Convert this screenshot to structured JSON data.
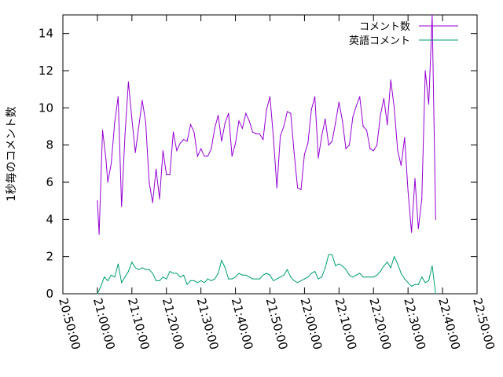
{
  "chart_data": {
    "type": "line",
    "title": "",
    "xlabel": "",
    "ylabel": "1秒毎のコメント数",
    "ylim": [
      0,
      15
    ],
    "yticks": [
      "0",
      "2",
      "4",
      "6",
      "8",
      "10",
      "12",
      "14"
    ],
    "xlim": [
      "20:50:00",
      "22:50:00"
    ],
    "xticks": [
      "20:50:00",
      "21:00:00",
      "21:10:00",
      "21:20:00",
      "21:30:00",
      "21:40:00",
      "21:50:00",
      "22:00:00",
      "22:10:00",
      "22:20:00",
      "22:30:00",
      "22:40:00",
      "22:50:00"
    ],
    "grid": false,
    "legend_position": "top-right",
    "series": [
      {
        "name": "コメント数",
        "color": "#9400d3",
        "points": [
          [
            "21:00:00",
            5.0
          ],
          [
            "21:00:30",
            3.2
          ],
          [
            "21:01:30",
            8.8
          ],
          [
            "21:02:30",
            7.2
          ],
          [
            "21:03:00",
            6.0
          ],
          [
            "21:04:00",
            7.0
          ],
          [
            "21:05:00",
            9.2
          ],
          [
            "21:06:00",
            10.6
          ],
          [
            "21:07:00",
            4.7
          ],
          [
            "21:08:00",
            8.6
          ],
          [
            "21:09:00",
            11.4
          ],
          [
            "21:10:00",
            9.4
          ],
          [
            "21:11:00",
            7.6
          ],
          [
            "21:12:00",
            9.0
          ],
          [
            "21:13:00",
            10.4
          ],
          [
            "21:14:00",
            9.2
          ],
          [
            "21:15:00",
            6.0
          ],
          [
            "21:16:00",
            4.9
          ],
          [
            "21:17:00",
            6.7
          ],
          [
            "21:18:00",
            5.1
          ],
          [
            "21:19:00",
            7.7
          ],
          [
            "21:20:00",
            6.4
          ],
          [
            "21:21:00",
            6.4
          ],
          [
            "21:22:00",
            8.7
          ],
          [
            "21:23:00",
            7.7
          ],
          [
            "21:24:00",
            8.1
          ],
          [
            "21:25:00",
            8.3
          ],
          [
            "21:26:00",
            8.2
          ],
          [
            "21:27:00",
            9.1
          ],
          [
            "21:28:00",
            8.7
          ],
          [
            "21:29:00",
            7.4
          ],
          [
            "21:30:00",
            7.8
          ],
          [
            "21:31:00",
            7.4
          ],
          [
            "21:32:00",
            7.4
          ],
          [
            "21:33:00",
            7.8
          ],
          [
            "21:34:00",
            8.9
          ],
          [
            "21:35:00",
            9.6
          ],
          [
            "21:36:00",
            8.2
          ],
          [
            "21:37:00",
            9.2
          ],
          [
            "21:38:00",
            9.7
          ],
          [
            "21:39:00",
            7.4
          ],
          [
            "21:40:00",
            8.1
          ],
          [
            "21:41:00",
            9.3
          ],
          [
            "21:42:00",
            8.9
          ],
          [
            "21:43:00",
            9.7
          ],
          [
            "21:44:00",
            9.3
          ],
          [
            "21:45:00",
            8.7
          ],
          [
            "21:46:00",
            8.6
          ],
          [
            "21:47:00",
            8.6
          ],
          [
            "21:48:00",
            8.3
          ],
          [
            "21:49:00",
            9.9
          ],
          [
            "21:50:00",
            10.6
          ],
          [
            "21:51:00",
            8.4
          ],
          [
            "21:52:00",
            5.7
          ],
          [
            "21:53:00",
            8.5
          ],
          [
            "21:54:00",
            9.0
          ],
          [
            "21:55:00",
            9.8
          ],
          [
            "21:56:00",
            9.7
          ],
          [
            "21:57:00",
            7.6
          ],
          [
            "21:58:00",
            5.7
          ],
          [
            "21:59:00",
            5.6
          ],
          [
            "22:00:00",
            7.5
          ],
          [
            "22:01:00",
            8.1
          ],
          [
            "22:02:00",
            9.9
          ],
          [
            "22:03:00",
            10.6
          ],
          [
            "22:04:00",
            7.3
          ],
          [
            "22:05:00",
            8.5
          ],
          [
            "22:06:00",
            9.4
          ],
          [
            "22:07:00",
            8.0
          ],
          [
            "22:08:00",
            8.2
          ],
          [
            "22:09:00",
            9.2
          ],
          [
            "22:10:00",
            10.3
          ],
          [
            "22:11:00",
            9.3
          ],
          [
            "22:12:00",
            7.8
          ],
          [
            "22:13:00",
            8.0
          ],
          [
            "22:14:00",
            9.5
          ],
          [
            "22:15:00",
            10.1
          ],
          [
            "22:16:00",
            10.6
          ],
          [
            "22:17:00",
            9.0
          ],
          [
            "22:18:00",
            8.8
          ],
          [
            "22:19:00",
            7.8
          ],
          [
            "22:20:00",
            7.7
          ],
          [
            "22:21:00",
            8.0
          ],
          [
            "22:22:00",
            9.6
          ],
          [
            "22:23:00",
            10.5
          ],
          [
            "22:24:00",
            9.1
          ],
          [
            "22:25:00",
            11.5
          ],
          [
            "22:26:00",
            10.0
          ],
          [
            "22:27:00",
            7.7
          ],
          [
            "22:28:00",
            6.9
          ],
          [
            "22:29:00",
            8.4
          ],
          [
            "22:30:00",
            5.5
          ],
          [
            "22:31:00",
            3.3
          ],
          [
            "22:32:00",
            6.2
          ],
          [
            "22:33:00",
            3.5
          ],
          [
            "22:34:00",
            5.1
          ],
          [
            "22:35:00",
            12.0
          ],
          [
            "22:36:00",
            10.2
          ],
          [
            "22:37:00",
            15.0
          ],
          [
            "22:38:00",
            4.0
          ]
        ]
      },
      {
        "name": "英語コメント",
        "color": "#009e73",
        "points": [
          [
            "21:00:00",
            0.0
          ],
          [
            "21:01:00",
            0.4
          ],
          [
            "21:02:00",
            0.9
          ],
          [
            "21:03:00",
            0.7
          ],
          [
            "21:04:00",
            1.0
          ],
          [
            "21:05:00",
            0.9
          ],
          [
            "21:06:00",
            1.6
          ],
          [
            "21:07:00",
            0.6
          ],
          [
            "21:08:00",
            0.9
          ],
          [
            "21:09:00",
            1.2
          ],
          [
            "21:10:00",
            1.7
          ],
          [
            "21:11:00",
            1.4
          ],
          [
            "21:12:00",
            1.3
          ],
          [
            "21:13:00",
            1.4
          ],
          [
            "21:14:00",
            1.3
          ],
          [
            "21:15:00",
            1.3
          ],
          [
            "21:16:00",
            1.1
          ],
          [
            "21:17:00",
            0.7
          ],
          [
            "21:18:00",
            0.7
          ],
          [
            "21:19:00",
            0.9
          ],
          [
            "21:20:00",
            0.8
          ],
          [
            "21:21:00",
            1.2
          ],
          [
            "21:22:00",
            1.1
          ],
          [
            "21:23:00",
            1.1
          ],
          [
            "21:24:00",
            0.9
          ],
          [
            "21:25:00",
            1.0
          ],
          [
            "21:26:00",
            0.5
          ],
          [
            "21:27:00",
            0.7
          ],
          [
            "21:28:00",
            0.7
          ],
          [
            "21:29:00",
            0.6
          ],
          [
            "21:30:00",
            0.7
          ],
          [
            "21:31:00",
            0.6
          ],
          [
            "21:32:00",
            0.8
          ],
          [
            "21:33:00",
            0.7
          ],
          [
            "21:34:00",
            0.8
          ],
          [
            "21:35:00",
            1.1
          ],
          [
            "21:36:00",
            1.8
          ],
          [
            "21:37:00",
            1.4
          ],
          [
            "21:38:00",
            0.8
          ],
          [
            "21:39:00",
            0.8
          ],
          [
            "21:40:00",
            0.9
          ],
          [
            "21:41:00",
            1.1
          ],
          [
            "21:42:00",
            1.0
          ],
          [
            "21:43:00",
            1.0
          ],
          [
            "21:44:00",
            0.9
          ],
          [
            "21:45:00",
            0.8
          ],
          [
            "21:46:00",
            0.8
          ],
          [
            "21:47:00",
            0.8
          ],
          [
            "21:48:00",
            1.0
          ],
          [
            "21:49:00",
            1.1
          ],
          [
            "21:50:00",
            1.0
          ],
          [
            "21:51:00",
            0.7
          ],
          [
            "21:52:00",
            0.8
          ],
          [
            "21:53:00",
            0.9
          ],
          [
            "21:54:00",
            1.0
          ],
          [
            "21:55:00",
            1.3
          ],
          [
            "21:56:00",
            0.9
          ],
          [
            "21:57:00",
            0.7
          ],
          [
            "21:58:00",
            0.6
          ],
          [
            "21:59:00",
            0.7
          ],
          [
            "22:00:00",
            0.8
          ],
          [
            "22:01:00",
            0.9
          ],
          [
            "22:02:00",
            1.1
          ],
          [
            "22:03:00",
            1.2
          ],
          [
            "22:04:00",
            0.8
          ],
          [
            "22:05:00",
            0.9
          ],
          [
            "22:06:00",
            1.4
          ],
          [
            "22:07:00",
            2.1
          ],
          [
            "22:08:00",
            2.1
          ],
          [
            "22:09:00",
            1.5
          ],
          [
            "22:10:00",
            1.6
          ],
          [
            "22:11:00",
            1.5
          ],
          [
            "22:12:00",
            1.3
          ],
          [
            "22:13:00",
            1.0
          ],
          [
            "22:14:00",
            0.9
          ],
          [
            "22:15:00",
            1.0
          ],
          [
            "22:16:00",
            1.1
          ],
          [
            "22:17:00",
            0.9
          ],
          [
            "22:18:00",
            0.9
          ],
          [
            "22:19:00",
            0.9
          ],
          [
            "22:20:00",
            0.9
          ],
          [
            "22:21:00",
            1.0
          ],
          [
            "22:22:00",
            1.2
          ],
          [
            "22:23:00",
            1.5
          ],
          [
            "22:24:00",
            1.7
          ],
          [
            "22:25:00",
            1.4
          ],
          [
            "22:26:00",
            2.0
          ],
          [
            "22:27:00",
            1.6
          ],
          [
            "22:28:00",
            1.1
          ],
          [
            "22:29:00",
            0.8
          ],
          [
            "22:30:00",
            0.6
          ],
          [
            "22:31:00",
            0.4
          ],
          [
            "22:32:00",
            0.5
          ],
          [
            "22:33:00",
            0.5
          ],
          [
            "22:34:00",
            0.9
          ],
          [
            "22:35:00",
            0.6
          ],
          [
            "22:36:00",
            0.7
          ],
          [
            "22:37:00",
            1.5
          ],
          [
            "22:38:00",
            0.0
          ]
        ]
      }
    ]
  }
}
